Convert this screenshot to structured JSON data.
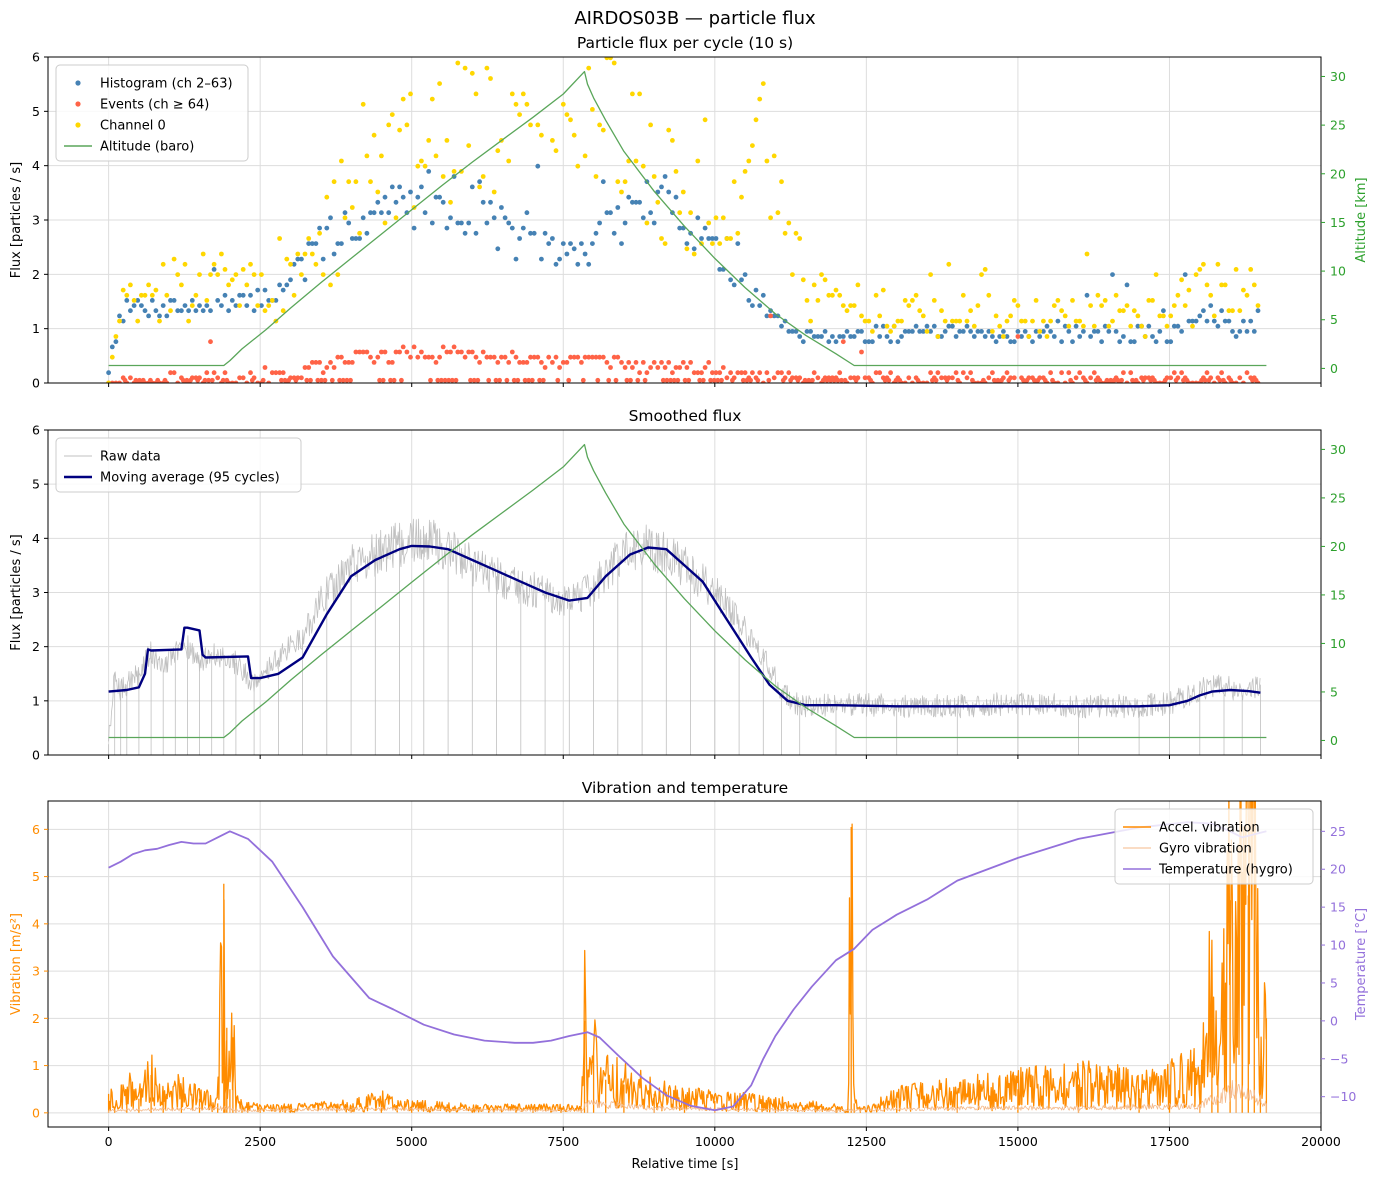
{
  "figure": {
    "suptitle": "AIRDOS03B — particle flux",
    "xlabel": "Relative time [s]",
    "xlim": [
      -1000,
      20000
    ],
    "xticks": [
      0,
      2500,
      5000,
      7500,
      10000,
      12500,
      15000,
      17500,
      20000
    ]
  },
  "colors": {
    "histogram": "#4682b4",
    "events": "#ff6347",
    "channel0": "#ffd700",
    "altitude": "#5aa65a",
    "altitude_axis": "#2ca02c",
    "raw": "#c0c0c0",
    "moving_average": "#000080",
    "accel": "#ff8c00",
    "gyro": "#f4b98a",
    "temperature": "#9370db",
    "grid": "#dddddd"
  },
  "chart_data": [
    {
      "type": "scatter",
      "title": "Particle flux per cycle (10 s)",
      "ylabel": "Flux [particles / s]",
      "ylim": [
        0,
        6
      ],
      "yticks": [
        0,
        1,
        2,
        3,
        4,
        5,
        6
      ],
      "y2label": "Altitude [km]",
      "y2lim": [
        -1.5,
        32
      ],
      "y2ticks": [
        0,
        5,
        10,
        15,
        20,
        25,
        30
      ],
      "legend": "top-left",
      "grid": true,
      "series": [
        {
          "name": "Histogram (ch 2–63)",
          "kind": "scatter",
          "color_key": "histogram",
          "x": [
            0,
            200,
            600,
            1000,
            1400,
            1800,
            2000,
            2300,
            2800,
            3300,
            3800,
            4300,
            4800,
            5300,
            5800,
            6300,
            6800,
            7300,
            7800,
            8300,
            8800,
            9300,
            9800,
            10300,
            10800,
            11300,
            11800,
            12500,
            13500,
            14500,
            15500,
            16500,
            17500,
            18200,
            18600,
            19000
          ],
          "values": [
            0.3,
            1.35,
            1.4,
            1.45,
            1.4,
            1.45,
            1.4,
            1.5,
            1.7,
            2.3,
            2.8,
            3.1,
            3.3,
            3.4,
            3.3,
            3.0,
            2.6,
            2.4,
            2.4,
            2.9,
            3.3,
            3.3,
            2.7,
            2.0,
            1.4,
            0.95,
            0.9,
            0.9,
            0.9,
            0.9,
            0.9,
            0.9,
            0.9,
            1.25,
            1.0,
            1.2
          ]
        },
        {
          "name": "Events (ch ≥ 64)",
          "kind": "scatter",
          "color_key": "events",
          "x": [
            0,
            500,
            1000,
            1500,
            2000,
            2500,
            3000,
            3500,
            4000,
            4500,
            5000,
            5500,
            6000,
            6500,
            7000,
            7500,
            8000,
            8500,
            9000,
            9500,
            10000,
            10500,
            11000,
            11500,
            12500,
            13500,
            14500,
            15500,
            16500,
            17500,
            18500,
            19000
          ],
          "values": [
            0.05,
            0.05,
            0.05,
            0.05,
            0.05,
            0.1,
            0.15,
            0.3,
            0.45,
            0.5,
            0.55,
            0.55,
            0.5,
            0.45,
            0.4,
            0.4,
            0.4,
            0.35,
            0.3,
            0.25,
            0.2,
            0.15,
            0.1,
            0.05,
            0.05,
            0.05,
            0.05,
            0.05,
            0.05,
            0.05,
            0.05,
            0.05
          ]
        },
        {
          "name": "Channel 0",
          "kind": "scatter",
          "color_key": "channel0",
          "x": [
            0,
            200,
            600,
            1000,
            1400,
            1800,
            2000,
            2400,
            2800,
            3300,
            3800,
            4300,
            4800,
            5300,
            5800,
            6300,
            6800,
            7300,
            7800,
            8300,
            8800,
            9300,
            9800,
            10300,
            10800,
            11300,
            11600,
            12000,
            12500,
            13500,
            14500,
            15500,
            16500,
            17500,
            18200,
            18600,
            19000
          ],
          "values": [
            0.2,
            1.5,
            1.6,
            1.7,
            1.7,
            1.9,
            2.0,
            1.6,
            1.6,
            2.1,
            3.0,
            3.6,
            4.0,
            4.3,
            4.5,
            4.9,
            5.2,
            5.4,
            5.3,
            4.8,
            4.0,
            3.6,
            3.2,
            3.4,
            4.8,
            2.5,
            1.6,
            1.4,
            1.35,
            1.25,
            1.25,
            1.25,
            1.25,
            1.25,
            1.8,
            1.6,
            1.3
          ]
        },
        {
          "name": "Altitude (baro)",
          "kind": "line",
          "axis": "y2",
          "color_key": "altitude",
          "x": [
            0,
            1900,
            2000,
            2200,
            2600,
            3000,
            3500,
            4000,
            4500,
            5000,
            5500,
            6000,
            6500,
            7000,
            7500,
            7850,
            7900,
            8000,
            8200,
            8500,
            9000,
            9500,
            10000,
            10500,
            11000,
            11500,
            12000,
            12300,
            13000,
            15000,
            17000,
            19100
          ],
          "values": [
            0.3,
            0.3,
            0.8,
            2.0,
            4.0,
            6.2,
            8.8,
            11.3,
            13.8,
            16.3,
            18.8,
            21.2,
            23.5,
            25.8,
            28.2,
            30.5,
            29.2,
            27.8,
            25.5,
            22.3,
            18.2,
            14.6,
            11.3,
            8.3,
            5.6,
            3.4,
            1.5,
            0.3,
            0.3,
            0.3,
            0.3,
            0.3
          ]
        }
      ]
    },
    {
      "type": "line",
      "title": "Smoothed flux",
      "ylabel": "Flux [particles / s]",
      "ylim": [
        0,
        6
      ],
      "yticks": [
        0,
        1,
        2,
        3,
        4,
        5,
        6
      ],
      "y2lim": [
        -1.5,
        32
      ],
      "y2ticks": [
        0,
        5,
        10,
        15,
        20,
        25,
        30
      ],
      "legend": "top-left",
      "grid": true,
      "series": [
        {
          "name": "Raw data",
          "kind": "line",
          "color_key": "raw",
          "x": [
            0,
            100,
            200,
            300,
            500,
            700,
            900,
            1100,
            1300,
            1500,
            1700,
            1900,
            2100,
            2400,
            2800,
            3200,
            3600,
            4000,
            4400,
            4800,
            5200,
            5600,
            6000,
            6400,
            6800,
            7200,
            7600,
            8000,
            8400,
            8800,
            9200,
            9600,
            10000,
            10400,
            10800,
            11100,
            11400,
            12000,
            13000,
            14000,
            15000,
            16000,
            17000,
            17500,
            18000,
            18400,
            18700,
            19000
          ],
          "values": [
            0.2,
            1.5,
            1.2,
            1.3,
            1.5,
            1.9,
            1.6,
            1.9,
            2.0,
            1.7,
            1.9,
            1.8,
            1.7,
            1.3,
            1.8,
            2.2,
            3.0,
            3.5,
            3.7,
            3.9,
            4.0,
            3.8,
            3.5,
            3.3,
            3.1,
            3.0,
            2.8,
            3.1,
            3.6,
            3.9,
            3.7,
            3.4,
            3.0,
            2.5,
            1.8,
            1.2,
            0.9,
            0.95,
            0.9,
            0.9,
            0.95,
            0.9,
            0.9,
            0.95,
            1.2,
            1.3,
            1.1,
            1.3
          ]
        },
        {
          "name": "Moving average (95 cycles)",
          "kind": "line",
          "color_key": "moving_average",
          "x": [
            0,
            300,
            500,
            600,
            650,
            700,
            1200,
            1250,
            1300,
            1500,
            1550,
            1600,
            2300,
            2350,
            2500,
            2800,
            3200,
            3600,
            4000,
            4400,
            4800,
            5000,
            5300,
            5600,
            6000,
            6400,
            6800,
            7200,
            7600,
            7900,
            8200,
            8600,
            8900,
            9200,
            9500,
            9800,
            10200,
            10600,
            10900,
            11200,
            11500,
            12000,
            13000,
            14000,
            15000,
            16000,
            17000,
            17500,
            17800,
            18000,
            18200,
            18500,
            18800,
            19000
          ],
          "values": [
            1.17,
            1.2,
            1.25,
            1.5,
            1.95,
            1.93,
            1.95,
            2.35,
            2.35,
            2.3,
            1.85,
            1.8,
            1.82,
            1.42,
            1.42,
            1.5,
            1.8,
            2.6,
            3.3,
            3.6,
            3.8,
            3.86,
            3.85,
            3.8,
            3.6,
            3.4,
            3.2,
            3.0,
            2.85,
            2.9,
            3.3,
            3.7,
            3.83,
            3.8,
            3.5,
            3.2,
            2.5,
            1.8,
            1.3,
            1.0,
            0.92,
            0.92,
            0.9,
            0.9,
            0.9,
            0.9,
            0.9,
            0.92,
            1.0,
            1.1,
            1.17,
            1.2,
            1.18,
            1.15
          ]
        },
        {
          "name": "",
          "kind": "line",
          "axis": "y2",
          "color_key": "altitude",
          "x": [
            0,
            1900,
            2000,
            2200,
            2600,
            3000,
            3500,
            4000,
            4500,
            5000,
            5500,
            6000,
            6500,
            7000,
            7500,
            7850,
            7900,
            8000,
            8200,
            8500,
            9000,
            9500,
            10000,
            10500,
            11000,
            11500,
            12000,
            12300,
            13000,
            15000,
            17000,
            19100
          ],
          "values": [
            0.3,
            0.3,
            0.8,
            2.0,
            4.0,
            6.2,
            8.8,
            11.3,
            13.8,
            16.3,
            18.8,
            21.2,
            23.5,
            25.8,
            28.2,
            30.5,
            29.2,
            27.8,
            25.5,
            22.3,
            18.2,
            14.6,
            11.3,
            8.3,
            5.6,
            3.4,
            1.5,
            0.3,
            0.3,
            0.3,
            0.3,
            0.3
          ]
        }
      ]
    },
    {
      "type": "line",
      "title": "Vibration and temperature",
      "ylabel": "Vibration [m/s²]",
      "ylim": [
        -0.3,
        6.6
      ],
      "yticks": [
        0,
        1,
        2,
        3,
        4,
        5,
        6
      ],
      "y2label": "Temperature [°C]",
      "y2lim": [
        -14,
        29
      ],
      "y2ticks": [
        -10,
        -5,
        0,
        5,
        10,
        15,
        20,
        25
      ],
      "legend": "top-right",
      "grid": true,
      "series": [
        {
          "name": "Accel. vibration",
          "kind": "line",
          "color_key": "accel",
          "x": [
            0,
            100,
            300,
            500,
            700,
            900,
            1200,
            1500,
            1800,
            1900,
            1920,
            1950,
            2000,
            2050,
            2100,
            2200,
            2500,
            3000,
            4000,
            4500,
            5000,
            6000,
            7000,
            7800,
            7850,
            7900,
            8000,
            8200,
            8500,
            9000,
            9500,
            10000,
            11000,
            12000,
            12200,
            12250,
            12300,
            12400,
            13000,
            14000,
            15000,
            16000,
            17000,
            17500,
            18000,
            18200,
            18300,
            18500,
            18600,
            18700,
            18800,
            18900,
            19000,
            19100
          ],
          "values": [
            0.4,
            0.1,
            0.5,
            0.3,
            0.8,
            0.3,
            0.5,
            0.3,
            0.2,
            4.85,
            0.4,
            1.8,
            0.5,
            1.6,
            0.3,
            0.15,
            0.1,
            0.1,
            0.15,
            0.25,
            0.15,
            0.1,
            0.1,
            0.1,
            1.95,
            0.4,
            1.3,
            0.7,
            0.6,
            0.4,
            0.3,
            0.25,
            0.2,
            0.1,
            0.05,
            6.05,
            0.2,
            0.05,
            0.3,
            0.4,
            0.5,
            0.6,
            0.5,
            0.6,
            0.8,
            2.4,
            0.7,
            4.5,
            3.8,
            5.1,
            4.6,
            5.5,
            1.0,
            2.0
          ]
        },
        {
          "name": "Gyro vibration",
          "kind": "line",
          "color_key": "gyro",
          "x": [
            0,
            2000,
            2100,
            4000,
            7800,
            7900,
            9000,
            10000,
            12000,
            14000,
            16000,
            18000,
            18600,
            19100
          ],
          "values": [
            0.05,
            0.1,
            0.05,
            0.08,
            0.05,
            0.2,
            0.1,
            0.08,
            0.05,
            0.1,
            0.1,
            0.15,
            0.5,
            0.2
          ]
        },
        {
          "name": "Temperature (hygro)",
          "kind": "line",
          "axis": "y2",
          "color_key": "temperature",
          "x": [
            0,
            200,
            400,
            600,
            800,
            1000,
            1200,
            1400,
            1600,
            1800,
            2000,
            2300,
            2700,
            3200,
            3700,
            4300,
            4700,
            5200,
            5700,
            6200,
            6700,
            7000,
            7300,
            7600,
            7900,
            8100,
            8400,
            8800,
            9200,
            9600,
            10000,
            10300,
            10600,
            10800,
            11000,
            11300,
            11600,
            12000,
            12300,
            12600,
            13000,
            13500,
            14000,
            15000,
            16000,
            17000,
            17800,
            18200,
            18500,
            18700,
            19000,
            19100
          ],
          "values": [
            20.2,
            21.0,
            22.0,
            22.5,
            22.7,
            23.2,
            23.6,
            23.4,
            23.4,
            24.2,
            25.0,
            24.0,
            21.0,
            15.0,
            8.5,
            3.0,
            1.5,
            -0.5,
            -1.8,
            -2.6,
            -2.9,
            -2.9,
            -2.6,
            -2.0,
            -1.5,
            -2.2,
            -4.5,
            -7.5,
            -9.8,
            -11.2,
            -11.8,
            -11.3,
            -8.5,
            -5.0,
            -2.0,
            1.5,
            4.5,
            8.0,
            9.5,
            12.0,
            14.0,
            16.0,
            18.5,
            21.5,
            24.0,
            25.5,
            26.2,
            26.0,
            25.0,
            24.2,
            24.8,
            25.0
          ]
        }
      ]
    }
  ]
}
